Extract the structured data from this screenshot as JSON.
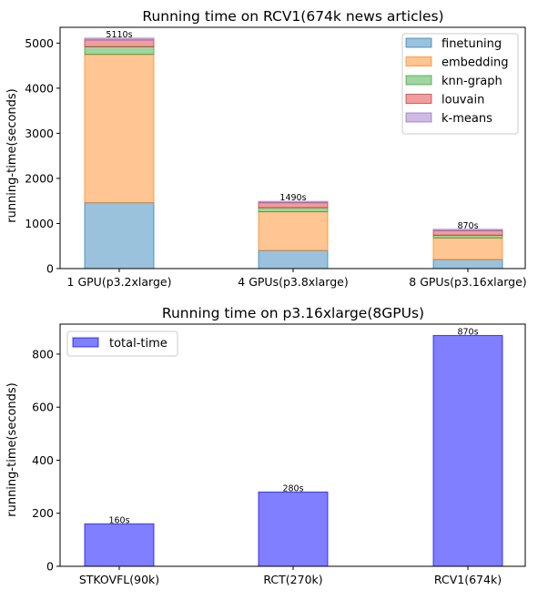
{
  "chart_data": [
    {
      "type": "bar",
      "stacked": true,
      "title": "Running time on RCV1(674k news articles)",
      "xlabel": "",
      "ylabel": "running-time(seconds)",
      "categories": [
        "1 GPU(p3.2xlarge)",
        "4 GPUs(p3.8xlarge)",
        "8 GPUs(p3.16xlarge)"
      ],
      "series": [
        {
          "name": "finetuning",
          "values": [
            1460,
            400,
            200
          ],
          "color": "#1f77b4"
        },
        {
          "name": "embedding",
          "values": [
            3290,
            860,
            480
          ],
          "color": "#ff7f0e"
        },
        {
          "name": "knn-graph",
          "values": [
            170,
            90,
            60
          ],
          "color": "#2ca02c"
        },
        {
          "name": "louvain",
          "values": [
            150,
            110,
            100
          ],
          "color": "#d62728"
        },
        {
          "name": "k-means",
          "values": [
            40,
            30,
            30
          ],
          "color": "#9467bd"
        }
      ],
      "data_labels": [
        "5110s",
        "1490s",
        "870s"
      ],
      "ylim": [
        0,
        5350
      ],
      "yticks": [
        0,
        1000,
        2000,
        3000,
        4000,
        5000
      ],
      "grid": false,
      "legend": "top-right"
    },
    {
      "type": "bar",
      "title": "Running time on p3.16xlarge(8GPUs)",
      "xlabel": "",
      "ylabel": "running-time(seconds)",
      "categories": [
        "STKOVFL(90k)",
        "RCT(270k)",
        "RCV1(674k)"
      ],
      "series": [
        {
          "name": "total-time",
          "values": [
            160,
            280,
            870
          ],
          "color": "#0000ff"
        }
      ],
      "data_labels": [
        "160s",
        "280s",
        "870s"
      ],
      "ylim": [
        0,
        913
      ],
      "yticks": [
        0,
        200,
        400,
        600,
        800
      ],
      "grid": false,
      "legend": "top-left"
    }
  ]
}
